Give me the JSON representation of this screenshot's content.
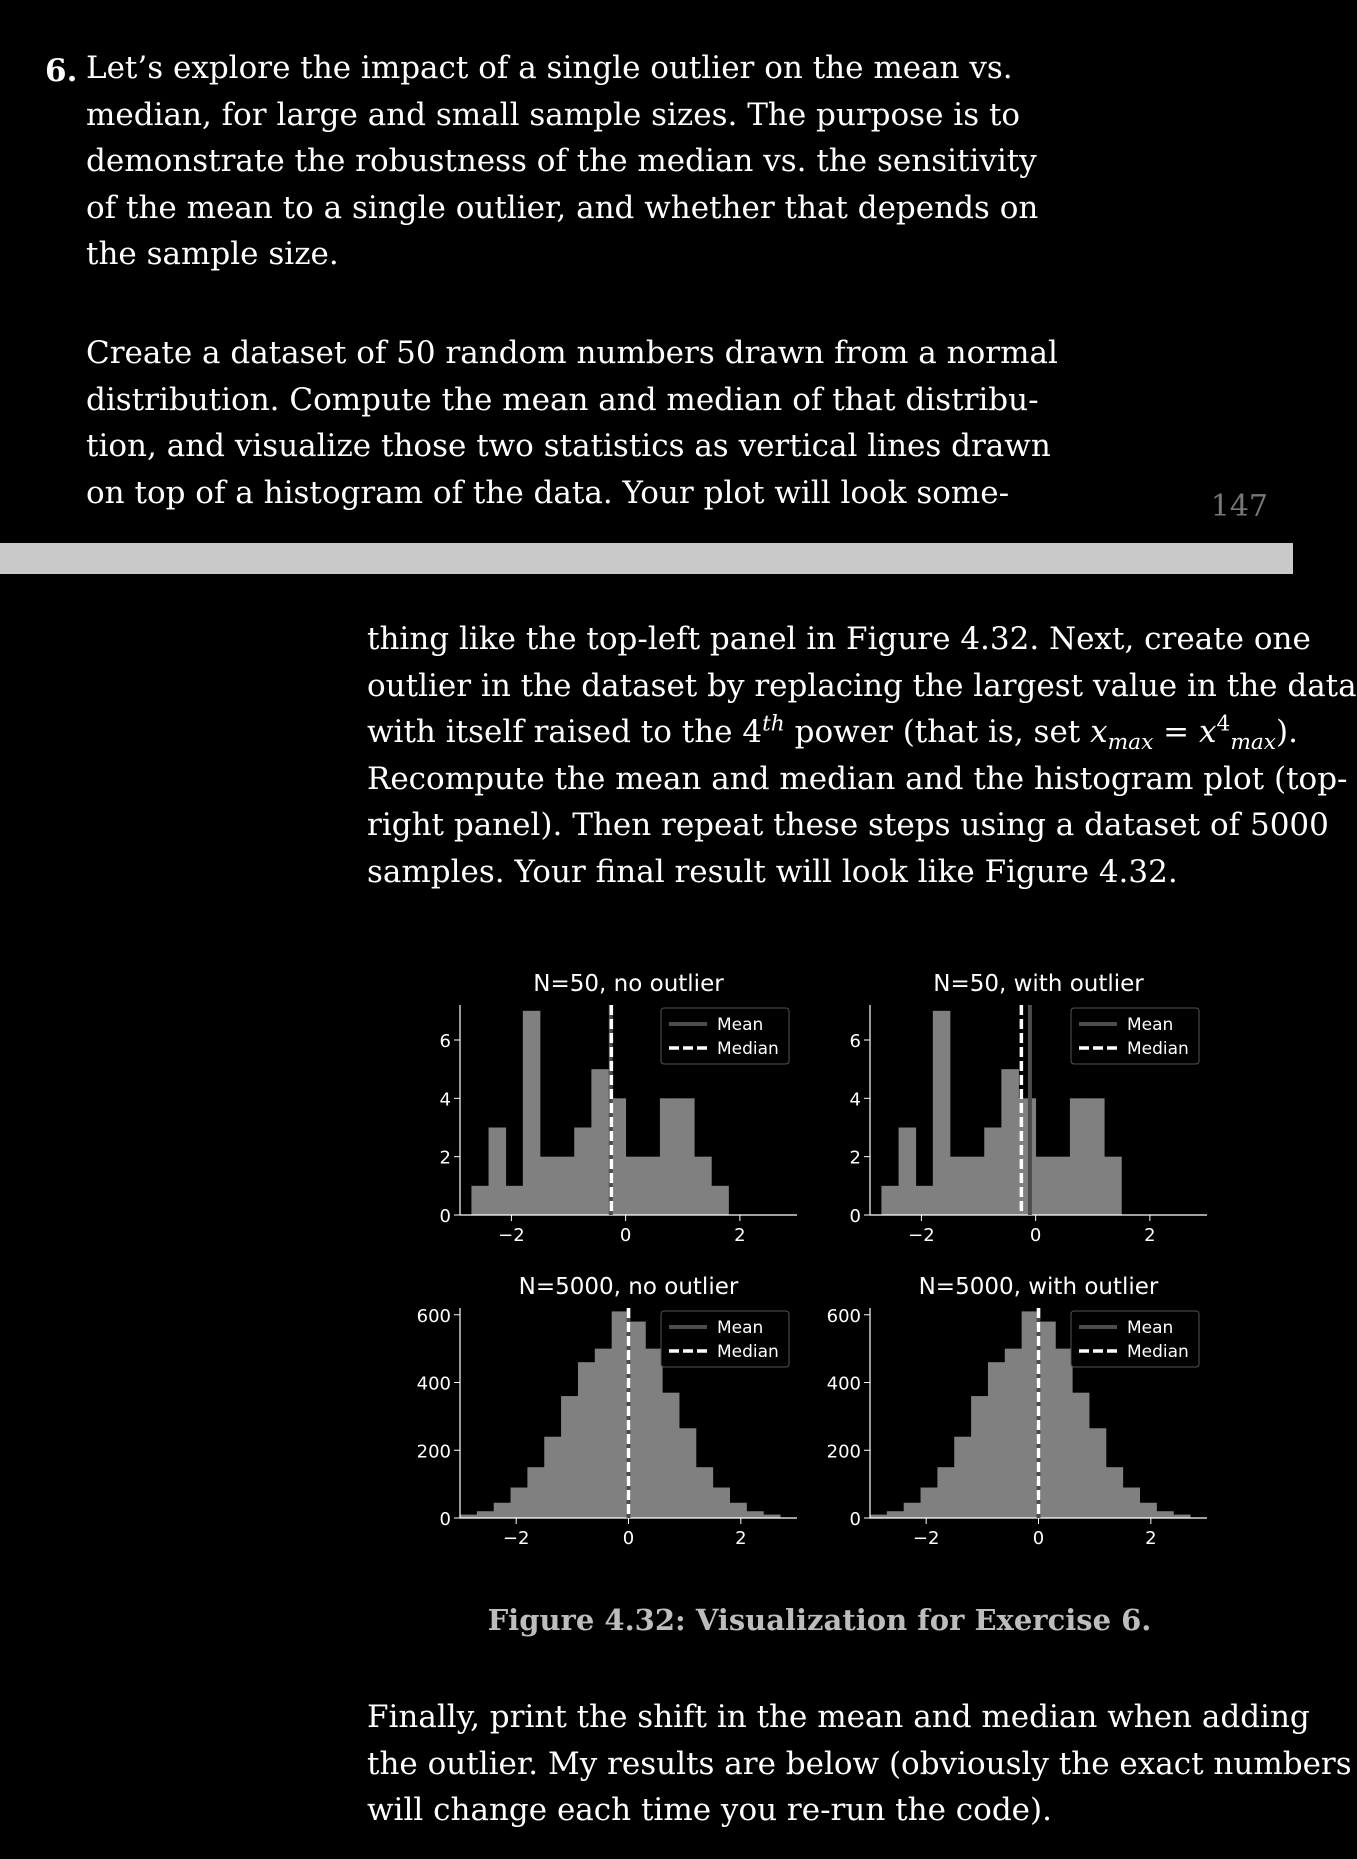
{
  "exercise_number": "6.",
  "page_number": "147",
  "paragraph1_lines": [
    "Let’s explore the impact of a single outlier on the mean vs.",
    "median, for large and small sample sizes.  The purpose is to",
    "demonstrate the robustness of the median vs.  the sensitivity",
    "of the mean to a single outlier, and whether that depends on",
    "the sample size."
  ],
  "paragraph2_lines": [
    "Create a dataset of 50 random numbers drawn from a normal",
    "distribution. Compute the mean and median of that distribu-",
    "tion, and visualize those two statistics as vertical lines drawn",
    "on top of a histogram of the data.  Your plot will look some-"
  ],
  "paragraph3": {
    "line1": "thing like the top-left panel in Figure 4.32.  Next, create one",
    "line2": "outlier in the dataset by replacing the largest value in the data",
    "line3_pre": "with itself raised to the 4",
    "line3_sup": "th",
    "line3_mid": " power (that is, set ",
    "line3_var": "x",
    "line3_sub": "max",
    "line3_eq": " = ",
    "line3_var2": "x",
    "line3_sup2": "4",
    "line3_sub2": "max",
    "line3_end": ").",
    "line4": "Recompute the mean and median and the histogram plot (top-",
    "line5": "right panel). Then repeat these steps using a dataset of 5000",
    "line6": "samples. Your final result will look like Figure 4.32."
  },
  "caption": "Figure 4.32: Visualization for Exercise 6.",
  "paragraph4_lines": [
    "Finally, print the shift in the mean and median when adding",
    "the outlier. My results are below (obviously the exact numbers",
    "will change each time you re-run the code)."
  ],
  "chart_data": [
    {
      "type": "bar",
      "title": "N=50, no outlier",
      "bin_start": -2.7,
      "bin_width": 0.3,
      "values": [
        1,
        3,
        1,
        7,
        2,
        2,
        3,
        5,
        4,
        2,
        2,
        4,
        4,
        2,
        1
      ],
      "mean": -0.26,
      "median": -0.25,
      "xlim": [
        -2.9,
        3.0
      ],
      "ylim": [
        0,
        7.2
      ],
      "xticks": [
        -2,
        0,
        2
      ],
      "xtick_labels": [
        "−2",
        "0",
        "2"
      ],
      "yticks": [
        0,
        2,
        4,
        6
      ],
      "ytick_labels": [
        "0",
        "2",
        "4",
        "6"
      ],
      "legend": [
        "Mean",
        "Median"
      ],
      "legend_position": "top-right"
    },
    {
      "type": "bar",
      "title": "N=50, with outlier",
      "bin_start": -2.7,
      "bin_width": 0.3,
      "values": [
        1,
        3,
        1,
        7,
        2,
        2,
        3,
        5,
        4,
        2,
        2,
        4,
        4,
        2
      ],
      "mean": -0.1,
      "median": -0.25,
      "xlim": [
        -2.9,
        3.0
      ],
      "ylim": [
        0,
        7.2
      ],
      "xticks": [
        -2,
        0,
        2
      ],
      "xtick_labels": [
        "−2",
        "0",
        "2"
      ],
      "yticks": [
        0,
        2,
        4,
        6
      ],
      "ytick_labels": [
        "0",
        "2",
        "4",
        "6"
      ],
      "legend": [
        "Mean",
        "Median"
      ],
      "legend_position": "top-right"
    },
    {
      "type": "bar",
      "title": "N=5000, no outlier",
      "bin_start": -3.0,
      "bin_width": 0.3,
      "values": [
        10,
        20,
        45,
        90,
        150,
        240,
        360,
        460,
        500,
        610,
        580,
        500,
        370,
        265,
        150,
        90,
        45,
        20,
        10
      ],
      "mean": 0.0,
      "median": 0.0,
      "xlim": [
        -3.0,
        3.0
      ],
      "ylim": [
        0,
        620
      ],
      "xticks": [
        -2,
        0,
        2
      ],
      "xtick_labels": [
        "−2",
        "0",
        "2"
      ],
      "yticks": [
        0,
        200,
        400,
        600
      ],
      "ytick_labels": [
        "0",
        "200",
        "400",
        "600"
      ],
      "legend": [
        "Mean",
        "Median"
      ],
      "legend_position": "top-right"
    },
    {
      "type": "bar",
      "title": "N=5000, with outlier",
      "bin_start": -3.0,
      "bin_width": 0.3,
      "values": [
        10,
        20,
        45,
        90,
        150,
        240,
        360,
        460,
        500,
        610,
        580,
        500,
        370,
        265,
        150,
        90,
        45,
        20,
        10
      ],
      "mean": 0.0,
      "median": 0.0,
      "xlim": [
        -3.0,
        3.0
      ],
      "ylim": [
        0,
        620
      ],
      "xticks": [
        -2,
        0,
        2
      ],
      "xtick_labels": [
        "−2",
        "0",
        "2"
      ],
      "yticks": [
        0,
        200,
        400,
        600
      ],
      "ytick_labels": [
        "0",
        "200",
        "400",
        "600"
      ],
      "legend": [
        "Mean",
        "Median"
      ],
      "legend_position": "top-right"
    }
  ]
}
